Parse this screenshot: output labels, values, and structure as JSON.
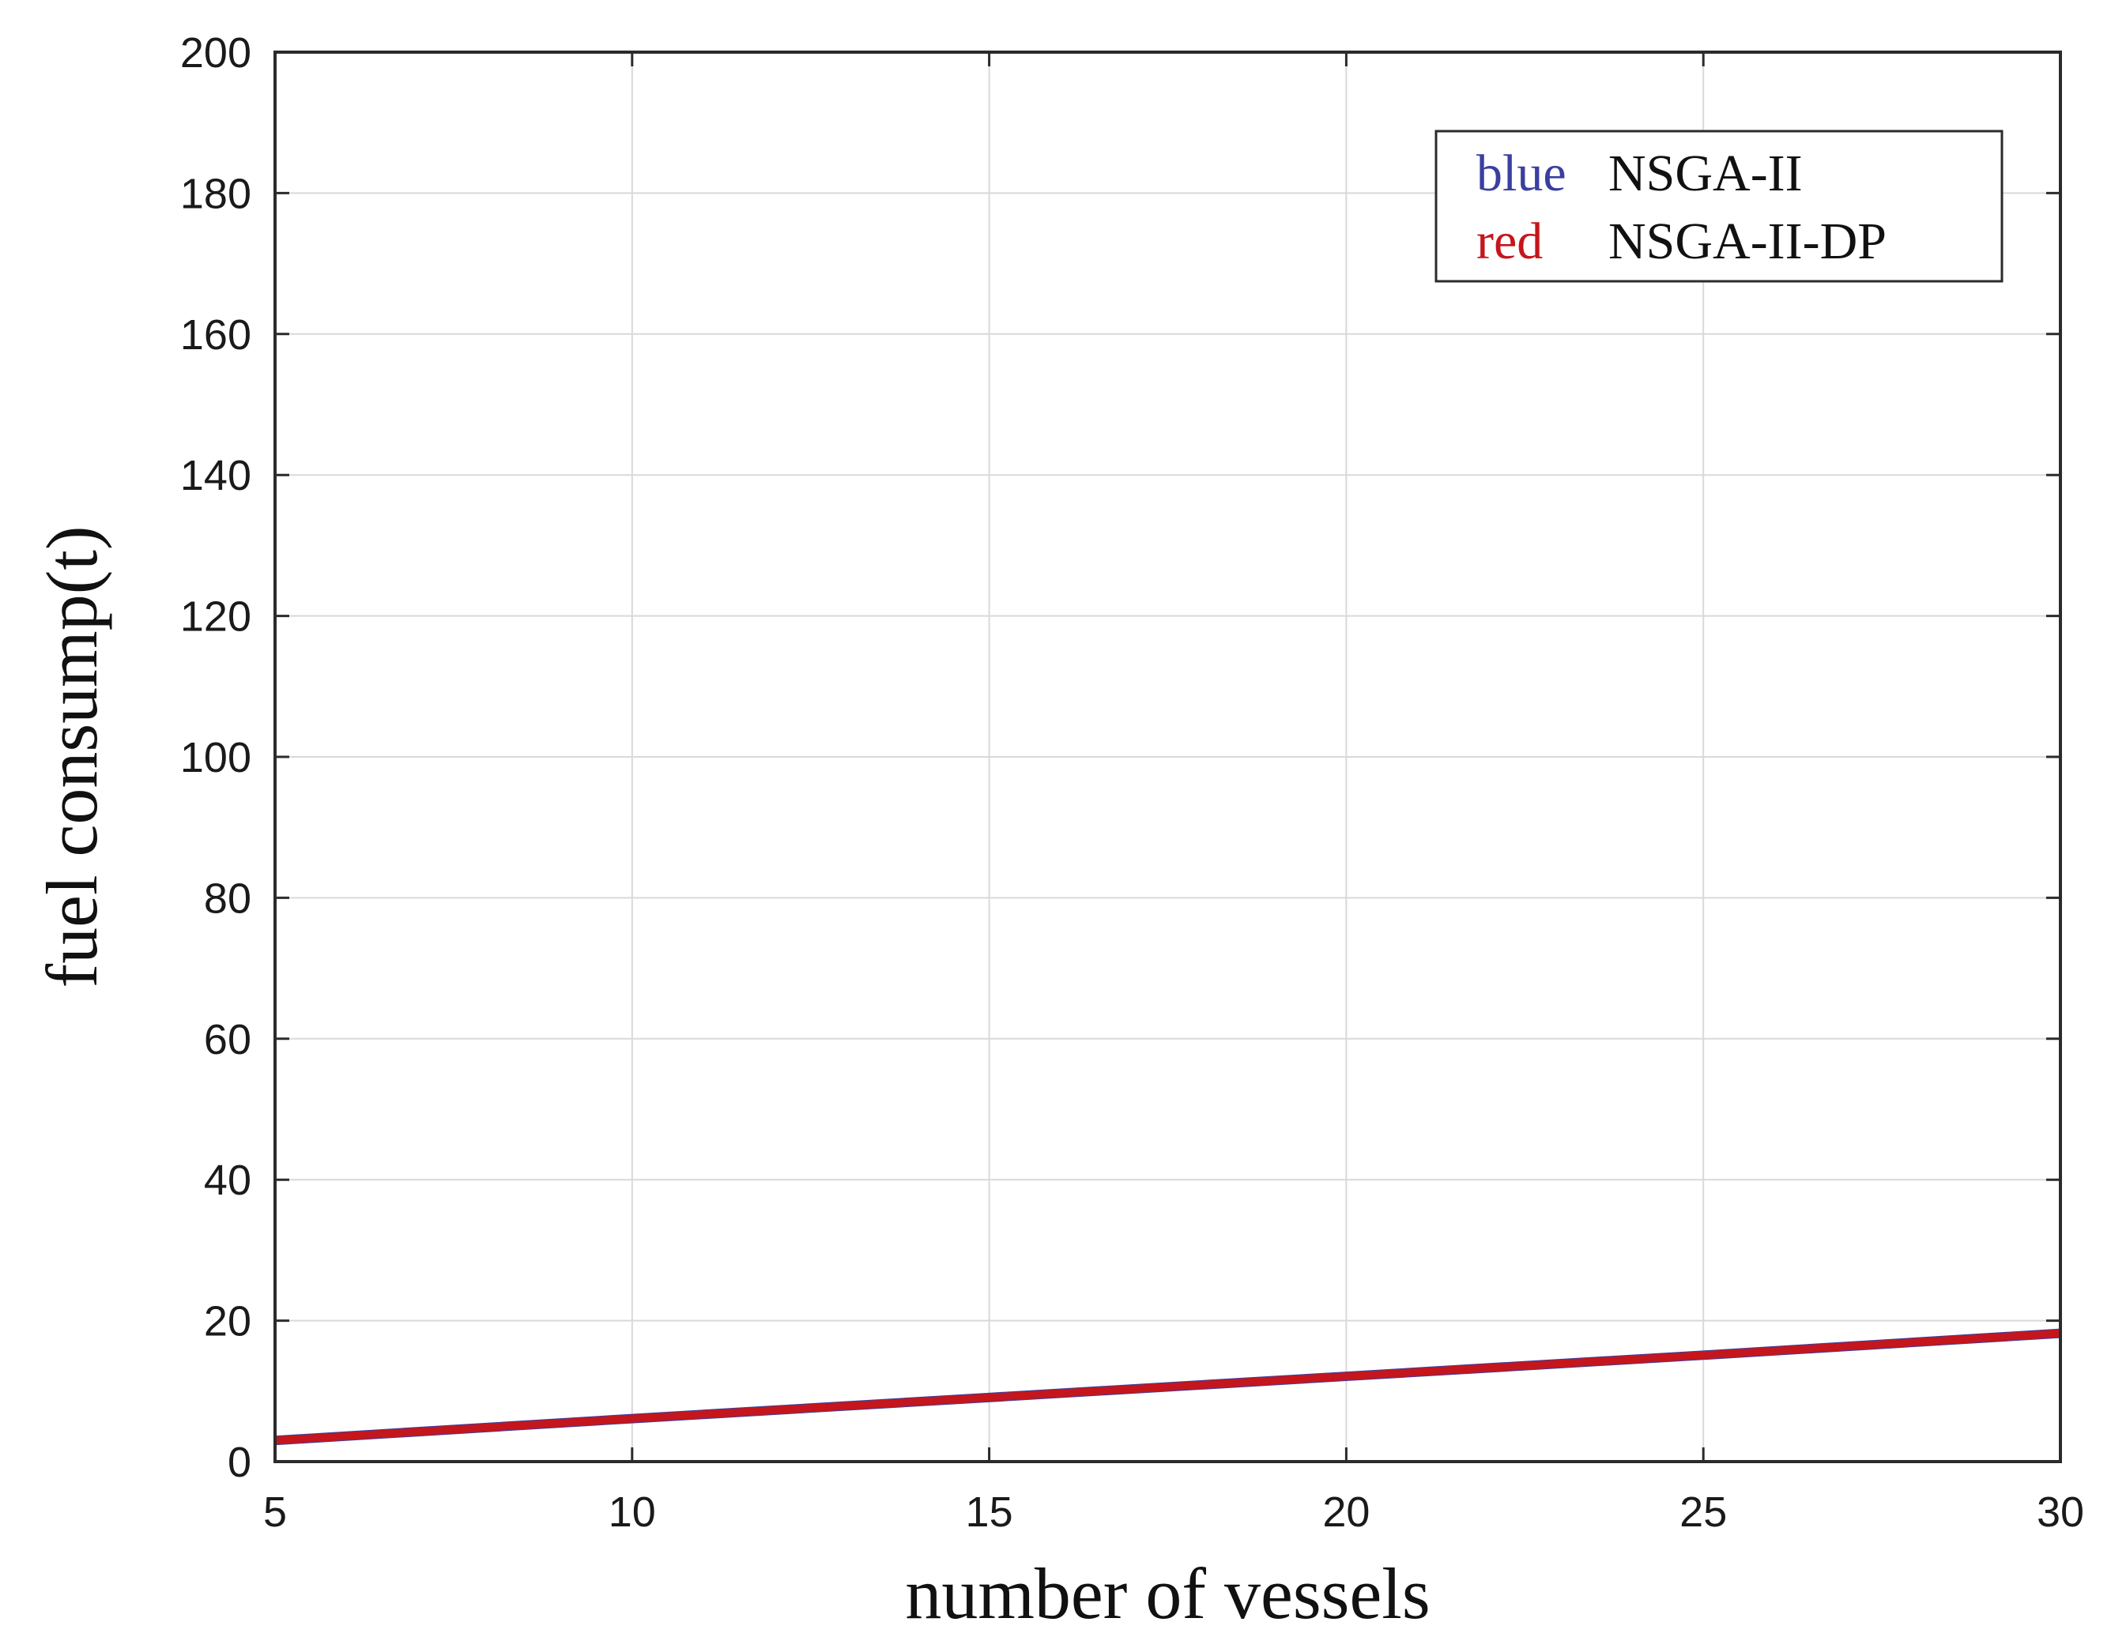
{
  "chart_data": {
    "type": "line",
    "title": "",
    "xlabel": "number of vessels",
    "ylabel": "fuel consump(t)",
    "xlim": [
      5,
      30
    ],
    "ylim": [
      0,
      200
    ],
    "xticks": [
      5,
      10,
      15,
      20,
      25,
      30
    ],
    "yticks": [
      0,
      20,
      40,
      60,
      80,
      100,
      120,
      140,
      160,
      180,
      200
    ],
    "grid": true,
    "legend_position": "top-right",
    "x": [
      5,
      10,
      15,
      20,
      25,
      30
    ],
    "series": [
      {
        "name": "NSGA-II",
        "color_word": "blue",
        "color": "#3a3fa0",
        "values": [
          3,
          6.1,
          9.1,
          12.1,
          15.1,
          18.2
        ]
      },
      {
        "name": "NSGA-II-DP",
        "color_word": "red",
        "color": "#c4161c",
        "values": [
          3,
          6.1,
          9.1,
          12.1,
          15.1,
          18.2
        ]
      }
    ]
  }
}
